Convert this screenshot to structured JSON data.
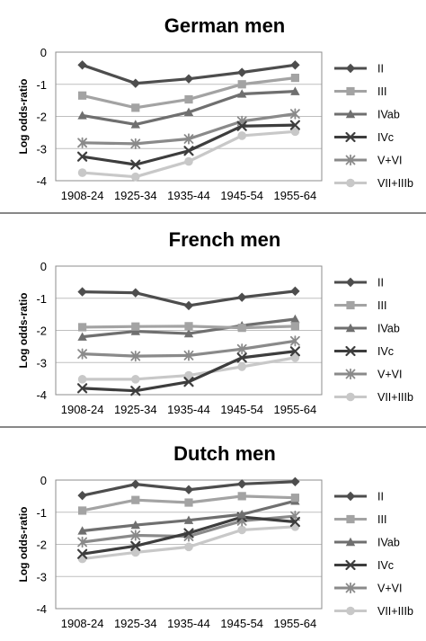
{
  "chart_data": [
    {
      "type": "line",
      "title": "German men",
      "ylabel": "Log odds-ratio",
      "xlabel": "",
      "categories": [
        "1908-24",
        "1925-34",
        "1935-44",
        "1945-54",
        "1955-64"
      ],
      "ylim": [
        -4,
        0
      ],
      "yticks": [
        0,
        -1,
        -2,
        -3,
        -4
      ],
      "grid": "horizontal",
      "legend_position": "right",
      "series": [
        {
          "name": "II",
          "marker": "diamond",
          "color": "#4d4d4d",
          "values": [
            -0.4,
            -0.97,
            -0.83,
            -0.63,
            -0.4
          ]
        },
        {
          "name": "III",
          "marker": "square",
          "color": "#a3a3a3",
          "values": [
            -1.35,
            -1.73,
            -1.47,
            -1.0,
            -0.8
          ]
        },
        {
          "name": "IVab",
          "marker": "triangle",
          "color": "#6f6f6f",
          "values": [
            -1.97,
            -2.25,
            -1.87,
            -1.3,
            -1.22
          ]
        },
        {
          "name": "IVc",
          "marker": "x",
          "color": "#3d3d3d",
          "values": [
            -3.25,
            -3.5,
            -3.07,
            -2.3,
            -2.27
          ]
        },
        {
          "name": "V+VI",
          "marker": "star",
          "color": "#8a8a8a",
          "values": [
            -2.82,
            -2.85,
            -2.7,
            -2.15,
            -1.92
          ]
        },
        {
          "name": "VII+IIIb",
          "marker": "circle",
          "color": "#c8c8c8",
          "values": [
            -3.75,
            -3.88,
            -3.4,
            -2.6,
            -2.47
          ]
        }
      ]
    },
    {
      "type": "line",
      "title": "French men",
      "ylabel": "Log odds-ratio",
      "xlabel": "",
      "categories": [
        "1908-24",
        "1925-34",
        "1935-44",
        "1945-54",
        "1955-64"
      ],
      "ylim": [
        -4,
        0
      ],
      "yticks": [
        0,
        -1,
        -2,
        -3,
        -4
      ],
      "grid": "horizontal",
      "legend_position": "right",
      "series": [
        {
          "name": "II",
          "marker": "diamond",
          "color": "#4d4d4d",
          "values": [
            -0.8,
            -0.83,
            -1.23,
            -0.97,
            -0.78
          ]
        },
        {
          "name": "III",
          "marker": "square",
          "color": "#a3a3a3",
          "values": [
            -1.9,
            -1.88,
            -1.87,
            -1.92,
            -1.87
          ]
        },
        {
          "name": "IVab",
          "marker": "triangle",
          "color": "#6f6f6f",
          "values": [
            -2.2,
            -2.03,
            -2.1,
            -1.85,
            -1.65
          ]
        },
        {
          "name": "IVc",
          "marker": "x",
          "color": "#3d3d3d",
          "values": [
            -3.8,
            -3.88,
            -3.6,
            -2.85,
            -2.65
          ]
        },
        {
          "name": "V+VI",
          "marker": "star",
          "color": "#8a8a8a",
          "values": [
            -2.73,
            -2.8,
            -2.78,
            -2.58,
            -2.33
          ]
        },
        {
          "name": "VII+IIIb",
          "marker": "circle",
          "color": "#c8c8c8",
          "values": [
            -3.52,
            -3.52,
            -3.4,
            -3.13,
            -2.85
          ]
        }
      ]
    },
    {
      "type": "line",
      "title": "Dutch men",
      "ylabel": "Log odds-ratio",
      "xlabel": "",
      "categories": [
        "1908-24",
        "1925-34",
        "1935-44",
        "1945-54",
        "1955-64"
      ],
      "ylim": [
        -4,
        0
      ],
      "yticks": [
        0,
        -1,
        -2,
        -3,
        -4
      ],
      "grid": "horizontal",
      "legend_position": "right",
      "series": [
        {
          "name": "II",
          "marker": "diamond",
          "color": "#4d4d4d",
          "values": [
            -0.48,
            -0.13,
            -0.3,
            -0.12,
            -0.05
          ]
        },
        {
          "name": "III",
          "marker": "square",
          "color": "#a3a3a3",
          "values": [
            -0.95,
            -0.62,
            -0.7,
            -0.5,
            -0.55
          ]
        },
        {
          "name": "IVab",
          "marker": "triangle",
          "color": "#6f6f6f",
          "values": [
            -1.58,
            -1.4,
            -1.25,
            -1.07,
            -0.65
          ]
        },
        {
          "name": "IVc",
          "marker": "x",
          "color": "#3d3d3d",
          "values": [
            -2.3,
            -2.05,
            -1.65,
            -1.15,
            -1.3
          ]
        },
        {
          "name": "V+VI",
          "marker": "star",
          "color": "#8a8a8a",
          "values": [
            -1.93,
            -1.72,
            -1.75,
            -1.27,
            -1.12
          ]
        },
        {
          "name": "VII+IIIb",
          "marker": "circle",
          "color": "#c8c8c8",
          "values": [
            -2.45,
            -2.25,
            -2.08,
            -1.55,
            -1.45
          ]
        }
      ]
    }
  ]
}
